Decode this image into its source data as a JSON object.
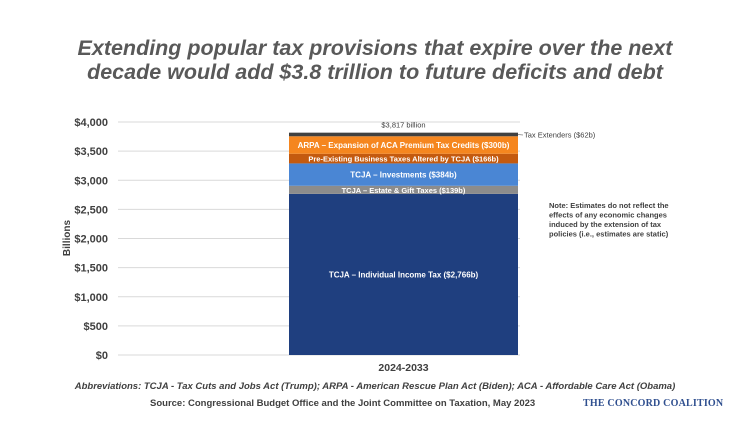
{
  "title_lines": [
    "Extending popular tax provisions that expire over the next",
    "decade would add $3.8 trillion to future deficits and debt"
  ],
  "chart_data": {
    "type": "bar",
    "stacked": true,
    "categories": [
      "2024-2033"
    ],
    "ylabel": "Billions",
    "ylim": [
      0,
      4000
    ],
    "yticks": [
      "$0",
      "$500",
      "$1,000",
      "$1,500",
      "$2,000",
      "$2,500",
      "$3,000",
      "$3,500",
      "$4,000"
    ],
    "ytick_values": [
      0,
      500,
      1000,
      1500,
      2000,
      2500,
      3000,
      3500,
      4000
    ],
    "grid": true,
    "total_label": "$3,817 billion",
    "total": 3817,
    "series": [
      {
        "name": "TCJA – Individual Income Tax ($2,766b)",
        "values": [
          2766
        ],
        "color": "#1f3f7f",
        "label_color": "#ffffff"
      },
      {
        "name": "TCJA – Estate & Gift Taxes ($139b)",
        "values": [
          139
        ],
        "color": "#8c8c8c",
        "label_color": "#ffffff"
      },
      {
        "name": "TCJA – Investments ($384b)",
        "values": [
          384
        ],
        "color": "#4a86d4",
        "label_color": "#ffffff"
      },
      {
        "name": "Pre-Existing Business Taxes Altered by TCJA ($166b)",
        "values": [
          166
        ],
        "color": "#c45a0f",
        "label_color": "#ffffff"
      },
      {
        "name": "ARPA – Expansion of ACA Premium Tax Credits ($300b)",
        "values": [
          300
        ],
        "color": "#f5861f",
        "label_color": "#ffffff"
      },
      {
        "name": "Tax Extenders ($62b)",
        "values": [
          62
        ],
        "color": "#404040",
        "label_color": "#404040",
        "label_outside": true
      }
    ],
    "note": [
      "Note: Estimates do not reflect the",
      "effects of any economic changes",
      "induced by the extension of tax",
      "policies (i.e., estimates are static)"
    ]
  },
  "footnote": "Abbreviations: TCJA - Tax Cuts and Jobs Act (Trump); ARPA - American Rescue Plan Act (Biden); ACA - Affordable Care Act (Obama)",
  "source": "Source: Congressional Budget Office and the Joint Committee on Taxation, May 2023",
  "brand": "THE CONCORD COALITION"
}
